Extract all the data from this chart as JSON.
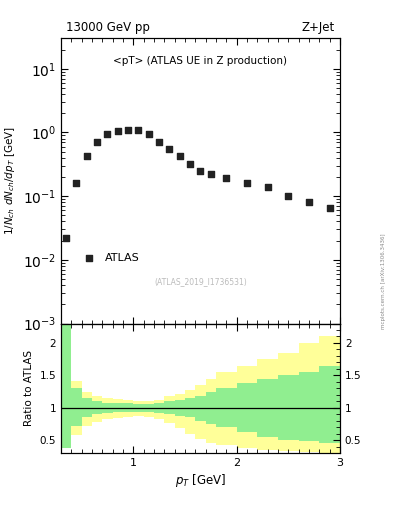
{
  "title_left": "13000 GeV pp",
  "title_right": "Z+Jet",
  "ylabel_main": "1/N$_{ch}$ dN$_{ch}$/dp$_T$ [GeV]",
  "ylabel_ratio": "Ratio to ATLAS",
  "xlabel": "p$_T$ [GeV]",
  "annotation": "<pT> (ATLAS UE in Z production)",
  "ref_label": "(ATLAS_2019_I1736531)",
  "watermark": "mcplots.cern.ch [arXiv:1306.3436]",
  "legend_label": "ATLAS",
  "data_x": [
    0.35,
    0.45,
    0.55,
    0.65,
    0.75,
    0.85,
    0.95,
    1.05,
    1.15,
    1.25,
    1.35,
    1.45,
    1.55,
    1.65,
    1.75,
    1.9,
    2.1,
    2.3,
    2.5,
    2.7,
    2.9
  ],
  "data_y": [
    0.022,
    0.16,
    0.43,
    0.72,
    0.93,
    1.05,
    1.1,
    1.1,
    0.95,
    0.72,
    0.55,
    0.42,
    0.32,
    0.25,
    0.22,
    0.19,
    0.16,
    0.14,
    0.1,
    0.082,
    0.065
  ],
  "ratio_x_edges": [
    0.3,
    0.4,
    0.5,
    0.6,
    0.7,
    0.8,
    0.9,
    1.0,
    1.1,
    1.2,
    1.3,
    1.4,
    1.5,
    1.6,
    1.7,
    1.8,
    2.0,
    2.2,
    2.4,
    2.6,
    2.8,
    3.0
  ],
  "ratio_green_top": [
    2.3,
    1.3,
    1.15,
    1.1,
    1.08,
    1.08,
    1.07,
    1.06,
    1.06,
    1.08,
    1.1,
    1.12,
    1.15,
    1.18,
    1.25,
    1.3,
    1.38,
    1.45,
    1.5,
    1.55,
    1.65
  ],
  "ratio_green_bot": [
    0.38,
    0.72,
    0.85,
    0.9,
    0.92,
    0.93,
    0.94,
    0.94,
    0.93,
    0.92,
    0.9,
    0.88,
    0.85,
    0.8,
    0.75,
    0.7,
    0.62,
    0.55,
    0.5,
    0.48,
    0.45
  ],
  "ratio_yellow_top": [
    2.3,
    1.42,
    1.25,
    1.18,
    1.15,
    1.13,
    1.12,
    1.1,
    1.1,
    1.12,
    1.18,
    1.22,
    1.28,
    1.35,
    1.45,
    1.55,
    1.65,
    1.75,
    1.85,
    2.0,
    2.1
  ],
  "ratio_yellow_bot": [
    0.38,
    0.58,
    0.72,
    0.78,
    0.82,
    0.84,
    0.86,
    0.87,
    0.86,
    0.82,
    0.76,
    0.68,
    0.6,
    0.52,
    0.46,
    0.42,
    0.38,
    0.35,
    0.33,
    0.32,
    0.3
  ],
  "xlim": [
    0.3,
    3.0
  ],
  "ylim_main_log": [
    0.001,
    30
  ],
  "ylim_ratio": [
    0.3,
    2.3
  ],
  "green_color": "#90EE90",
  "yellow_color": "#FFFF99",
  "data_color": "#222222",
  "marker_size": 16,
  "marker": "s"
}
